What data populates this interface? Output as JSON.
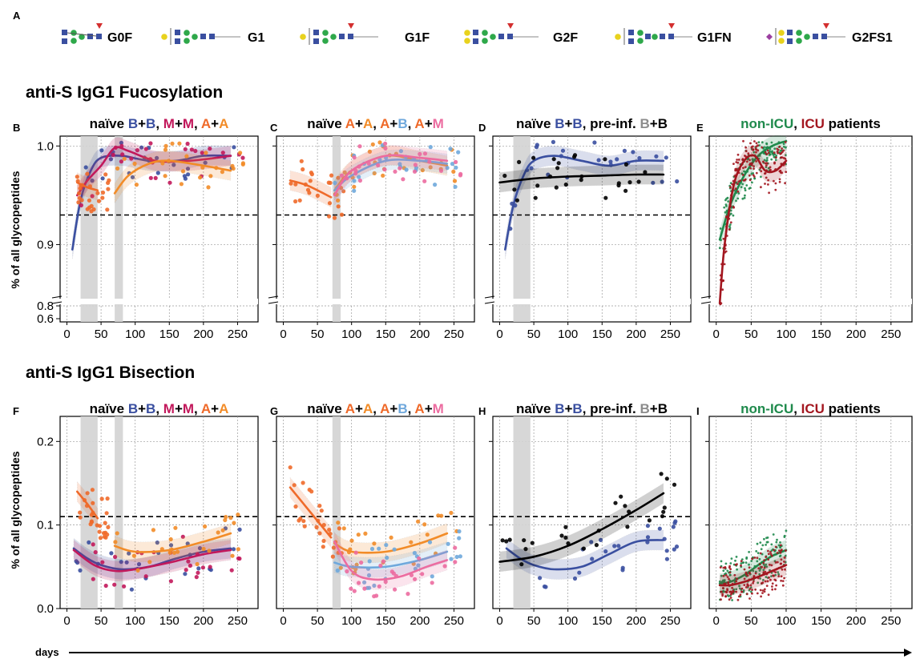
{
  "panel_letters": [
    "A",
    "B",
    "C",
    "D",
    "E",
    "F",
    "G",
    "H",
    "I"
  ],
  "legend": {
    "glycans": [
      {
        "name": "G0F",
        "galactose": 0,
        "fucose": true,
        "sialic": false
      },
      {
        "name": "G1",
        "galactose": 1,
        "fucose": false,
        "sialic": false
      },
      {
        "name": "G1F",
        "galactose": 1,
        "fucose": true,
        "sialic": false
      },
      {
        "name": "G2F",
        "galactose": 2,
        "fucose": true,
        "sialic": false
      },
      {
        "name": "G1FN",
        "galactose": 1,
        "fucose": true,
        "sialic": false,
        "bisect": true
      },
      {
        "name": "G2FS1",
        "galactose": 2,
        "fucose": true,
        "sialic": true
      }
    ]
  },
  "rows": [
    {
      "title": "anti-S IgG1 Fucosylation",
      "ylabel": "% of all glycopeptides"
    },
    {
      "title": "anti-S IgG1 Bisection",
      "ylabel": "% of all glycopeptides"
    }
  ],
  "xaxis_label": "days",
  "colors": {
    "B+B": "#3a4fa0",
    "M+M": "#c2185b",
    "A+A": "#f28c28",
    "A_first": "#ef6a2a",
    "A+B": "#6fa8dc",
    "A+M": "#ec6ca0",
    "pre_inf": "#8c8c8c",
    "pre_inf_fit": "#000000",
    "non_icu": "#1f8a4c",
    "icu": "#a3161f",
    "shade": "#d3d3d3"
  },
  "chart_data": [
    {
      "panel": "B",
      "type": "scatter",
      "title_parts": [
        {
          "text": "naïve ",
          "color": "#000000"
        },
        {
          "text": "B",
          "color": "#3a4fa0"
        },
        {
          "text": "+",
          "color": "#000000"
        },
        {
          "text": "B",
          "color": "#3a4fa0"
        },
        {
          "text": ", ",
          "color": "#000000"
        },
        {
          "text": "M",
          "color": "#c2185b"
        },
        {
          "text": "+",
          "color": "#000000"
        },
        {
          "text": "M",
          "color": "#c2185b"
        },
        {
          "text": ", ",
          "color": "#000000"
        },
        {
          "text": "A",
          "color": "#ef6a2a"
        },
        {
          "text": "+",
          "color": "#000000"
        },
        {
          "text": "A",
          "color": "#f28c28"
        }
      ],
      "xlim": [
        -10,
        280
      ],
      "ylim": [
        0.6,
        1.0
      ],
      "x_ticks": [
        "0",
        "50",
        "100",
        "150",
        "200",
        "250"
      ],
      "y_ticks": [
        "0.6",
        "0.8",
        "0.9",
        "1.0"
      ],
      "y_break": true,
      "reference_line": 0.93,
      "shaded_bands": [
        [
          20,
          45
        ],
        [
          70,
          82
        ]
      ],
      "series": [
        {
          "color": "#3a4fa0",
          "fit_x": [
            8,
            20,
            35,
            50,
            80,
            120,
            160,
            200,
            240
          ],
          "fit_y": [
            0.895,
            0.945,
            0.975,
            0.988,
            0.99,
            0.985,
            0.985,
            0.99,
            0.99
          ]
        },
        {
          "color": "#c2185b",
          "fit_x": [
            15,
            30,
            50,
            70,
            90,
            130,
            180,
            240
          ],
          "fit_y": [
            0.95,
            0.965,
            0.98,
            0.998,
            0.995,
            0.985,
            0.985,
            0.99
          ]
        },
        {
          "color": "#ef6a2a",
          "fit_x": [
            15,
            30,
            45
          ],
          "fit_y": [
            0.963,
            0.958,
            0.955
          ]
        },
        {
          "color": "#f28c28",
          "fit_x": [
            70,
            90,
            120,
            150,
            200,
            240
          ],
          "fit_y": [
            0.952,
            0.97,
            0.982,
            0.985,
            0.98,
            0.975
          ]
        }
      ]
    },
    {
      "panel": "C",
      "type": "scatter",
      "title_parts": [
        {
          "text": "naïve ",
          "color": "#000000"
        },
        {
          "text": "A",
          "color": "#ef6a2a"
        },
        {
          "text": "+",
          "color": "#000000"
        },
        {
          "text": "A",
          "color": "#f28c28"
        },
        {
          "text": ", ",
          "color": "#000000"
        },
        {
          "text": "A",
          "color": "#ef6a2a"
        },
        {
          "text": "+",
          "color": "#000000"
        },
        {
          "text": "B",
          "color": "#6fa8dc"
        },
        {
          "text": ", ",
          "color": "#000000"
        },
        {
          "text": "A",
          "color": "#ef6a2a"
        },
        {
          "text": "+",
          "color": "#000000"
        },
        {
          "text": "M",
          "color": "#ec6ca0"
        }
      ],
      "xlim": [
        -10,
        280
      ],
      "ylim": [
        0.6,
        1.0
      ],
      "x_ticks": [
        "0",
        "50",
        "100",
        "150",
        "200",
        "250"
      ],
      "y_break": true,
      "reference_line": 0.93,
      "shaded_bands": [
        [
          72,
          84
        ]
      ],
      "series": [
        {
          "color": "#ef6a2a",
          "fit_x": [
            10,
            35,
            70
          ],
          "fit_y": [
            0.965,
            0.96,
            0.948
          ]
        },
        {
          "color": "#f28c28",
          "fit_x": [
            75,
            100,
            150,
            200,
            240
          ],
          "fit_y": [
            0.955,
            0.975,
            0.99,
            0.985,
            0.98
          ]
        },
        {
          "color": "#6fa8dc",
          "fit_x": [
            75,
            100,
            150,
            200,
            240
          ],
          "fit_y": [
            0.955,
            0.97,
            0.985,
            0.985,
            0.982
          ]
        },
        {
          "color": "#ec6ca0",
          "fit_x": [
            75,
            100,
            150,
            200,
            240
          ],
          "fit_y": [
            0.95,
            0.975,
            0.99,
            0.988,
            0.985
          ]
        }
      ]
    },
    {
      "panel": "D",
      "type": "scatter",
      "title_parts": [
        {
          "text": "naïve ",
          "color": "#000000"
        },
        {
          "text": "B",
          "color": "#3a4fa0"
        },
        {
          "text": "+",
          "color": "#000000"
        },
        {
          "text": "B",
          "color": "#3a4fa0"
        },
        {
          "text": ", pre-inf. ",
          "color": "#000000"
        },
        {
          "text": "B",
          "color": "#8c8c8c"
        },
        {
          "text": "+B",
          "color": "#000000"
        }
      ],
      "xlim": [
        -10,
        280
      ],
      "ylim": [
        0.6,
        1.0
      ],
      "x_ticks": [
        "0",
        "50",
        "100",
        "150",
        "200",
        "250"
      ],
      "y_break": true,
      "reference_line": 0.93,
      "shaded_bands": [
        [
          20,
          45
        ]
      ],
      "series": [
        {
          "color": "#3a4fa0",
          "fit_x": [
            8,
            20,
            35,
            50,
            80,
            120,
            160,
            200,
            240
          ],
          "fit_y": [
            0.895,
            0.94,
            0.97,
            0.985,
            0.99,
            0.985,
            0.98,
            0.985,
            0.985
          ]
        },
        {
          "color": "#000000",
          "fit_x": [
            0,
            50,
            100,
            150,
            200,
            240
          ],
          "fit_y": [
            0.963,
            0.967,
            0.969,
            0.97,
            0.971,
            0.971
          ]
        }
      ]
    },
    {
      "panel": "E",
      "type": "scatter",
      "title_parts": [
        {
          "text": "non-ICU",
          "color": "#1f8a4c"
        },
        {
          "text": ", ",
          "color": "#000000"
        },
        {
          "text": "ICU",
          "color": "#a3161f"
        },
        {
          "text": " patients",
          "color": "#000000"
        }
      ],
      "xlim": [
        -10,
        280
      ],
      "ylim": [
        0.6,
        1.0
      ],
      "x_ticks": [
        "0",
        "50",
        "100",
        "150",
        "200",
        "250"
      ],
      "y_break": true,
      "series": [
        {
          "color": "#1f8a4c",
          "fit_x": [
            5,
            20,
            40,
            60,
            80,
            100
          ],
          "fit_y": [
            0.905,
            0.94,
            0.97,
            0.99,
            1.0,
            1.005
          ]
        },
        {
          "color": "#a3161f",
          "fit_x": [
            5,
            12,
            25,
            40,
            55,
            70,
            85,
            100
          ],
          "fit_y": [
            0.84,
            0.9,
            0.96,
            0.985,
            0.99,
            0.975,
            0.975,
            0.985
          ]
        }
      ]
    },
    {
      "panel": "F",
      "type": "scatter",
      "title_parts": [
        {
          "text": "naïve ",
          "color": "#000000"
        },
        {
          "text": "B",
          "color": "#3a4fa0"
        },
        {
          "text": "+",
          "color": "#000000"
        },
        {
          "text": "B",
          "color": "#3a4fa0"
        },
        {
          "text": ", ",
          "color": "#000000"
        },
        {
          "text": "M",
          "color": "#c2185b"
        },
        {
          "text": "+",
          "color": "#000000"
        },
        {
          "text": "M",
          "color": "#c2185b"
        },
        {
          "text": ", ",
          "color": "#000000"
        },
        {
          "text": "A",
          "color": "#ef6a2a"
        },
        {
          "text": "+",
          "color": "#000000"
        },
        {
          "text": "A",
          "color": "#f28c28"
        }
      ],
      "xlim": [
        -10,
        280
      ],
      "ylim": [
        0.0,
        0.23
      ],
      "x_ticks": [
        "0",
        "50",
        "100",
        "150",
        "200",
        "250"
      ],
      "y_ticks": [
        "0.0",
        "0.1",
        "0.2"
      ],
      "reference_line": 0.11,
      "shaded_bands": [
        [
          20,
          45
        ],
        [
          70,
          82
        ]
      ],
      "series": [
        {
          "color": "#3a4fa0",
          "fit_x": [
            10,
            30,
            50,
            80,
            120,
            160,
            200,
            240
          ],
          "fit_y": [
            0.072,
            0.06,
            0.052,
            0.047,
            0.05,
            0.06,
            0.068,
            0.072
          ]
        },
        {
          "color": "#c2185b",
          "fit_x": [
            10,
            40,
            70,
            100,
            150,
            200,
            240
          ],
          "fit_y": [
            0.07,
            0.052,
            0.045,
            0.047,
            0.055,
            0.065,
            0.07
          ]
        },
        {
          "color": "#ef6a2a",
          "fit_x": [
            15,
            30,
            45
          ],
          "fit_y": [
            0.14,
            0.125,
            0.108
          ]
        },
        {
          "color": "#f28c28",
          "fit_x": [
            70,
            100,
            150,
            200,
            240
          ],
          "fit_y": [
            0.075,
            0.068,
            0.07,
            0.08,
            0.09
          ]
        }
      ]
    },
    {
      "panel": "G",
      "type": "scatter",
      "title_parts": [
        {
          "text": "naïve ",
          "color": "#000000"
        },
        {
          "text": "A",
          "color": "#ef6a2a"
        },
        {
          "text": "+",
          "color": "#000000"
        },
        {
          "text": "A",
          "color": "#f28c28"
        },
        {
          "text": ", ",
          "color": "#000000"
        },
        {
          "text": "A",
          "color": "#ef6a2a"
        },
        {
          "text": "+",
          "color": "#000000"
        },
        {
          "text": "B",
          "color": "#6fa8dc"
        },
        {
          "text": ", ",
          "color": "#000000"
        },
        {
          "text": "A",
          "color": "#ef6a2a"
        },
        {
          "text": "+",
          "color": "#000000"
        },
        {
          "text": "M",
          "color": "#ec6ca0"
        }
      ],
      "xlim": [
        -10,
        280
      ],
      "ylim": [
        0.0,
        0.23
      ],
      "x_ticks": [
        "0",
        "50",
        "100",
        "150",
        "200",
        "250"
      ],
      "reference_line": 0.11,
      "shaded_bands": [
        [
          72,
          84
        ]
      ],
      "series": [
        {
          "color": "#ef6a2a",
          "fit_x": [
            10,
            40,
            70
          ],
          "fit_y": [
            0.145,
            0.115,
            0.085
          ]
        },
        {
          "color": "#f28c28",
          "fit_x": [
            75,
            100,
            150,
            200,
            240
          ],
          "fit_y": [
            0.078,
            0.068,
            0.068,
            0.078,
            0.09
          ]
        },
        {
          "color": "#6fa8dc",
          "fit_x": [
            75,
            100,
            150,
            200,
            240
          ],
          "fit_y": [
            0.055,
            0.05,
            0.05,
            0.058,
            0.068
          ]
        },
        {
          "color": "#ec6ca0",
          "fit_x": [
            75,
            100,
            130,
            170,
            210,
            240
          ],
          "fit_y": [
            0.08,
            0.045,
            0.035,
            0.038,
            0.05,
            0.058
          ]
        }
      ]
    },
    {
      "panel": "H",
      "type": "scatter",
      "title_parts": [
        {
          "text": "naïve ",
          "color": "#000000"
        },
        {
          "text": "B",
          "color": "#3a4fa0"
        },
        {
          "text": "+",
          "color": "#000000"
        },
        {
          "text": "B",
          "color": "#3a4fa0"
        },
        {
          "text": ", pre-inf. ",
          "color": "#000000"
        },
        {
          "text": "B",
          "color": "#8c8c8c"
        },
        {
          "text": "+B",
          "color": "#000000"
        }
      ],
      "xlim": [
        -10,
        280
      ],
      "ylim": [
        0.0,
        0.23
      ],
      "x_ticks": [
        "0",
        "50",
        "100",
        "150",
        "200",
        "250"
      ],
      "reference_line": 0.11,
      "shaded_bands": [
        [
          20,
          45
        ]
      ],
      "series": [
        {
          "color": "#3a4fa0",
          "fit_x": [
            10,
            30,
            50,
            80,
            120,
            160,
            200,
            240
          ],
          "fit_y": [
            0.072,
            0.06,
            0.052,
            0.047,
            0.05,
            0.065,
            0.08,
            0.082
          ]
        },
        {
          "color": "#000000",
          "fit_x": [
            0,
            50,
            100,
            150,
            200,
            240
          ],
          "fit_y": [
            0.056,
            0.062,
            0.075,
            0.095,
            0.118,
            0.138
          ]
        }
      ]
    },
    {
      "panel": "I",
      "type": "scatter",
      "title_parts": [
        {
          "text": "non-ICU",
          "color": "#1f8a4c"
        },
        {
          "text": ", ",
          "color": "#000000"
        },
        {
          "text": "ICU",
          "color": "#a3161f"
        },
        {
          "text": " patients",
          "color": "#000000"
        }
      ],
      "xlim": [
        -10,
        280
      ],
      "ylim": [
        0.0,
        0.23
      ],
      "x_ticks": [
        "0",
        "50",
        "100",
        "150",
        "200",
        "250"
      ],
      "series": [
        {
          "color": "#1f8a4c",
          "fit_x": [
            5,
            20,
            40,
            60,
            80,
            100
          ],
          "fit_y": [
            0.03,
            0.032,
            0.04,
            0.052,
            0.063,
            0.07
          ]
        },
        {
          "color": "#a3161f",
          "fit_x": [
            5,
            20,
            40,
            60,
            80,
            100
          ],
          "fit_y": [
            0.028,
            0.028,
            0.032,
            0.038,
            0.045,
            0.052
          ]
        }
      ]
    }
  ]
}
